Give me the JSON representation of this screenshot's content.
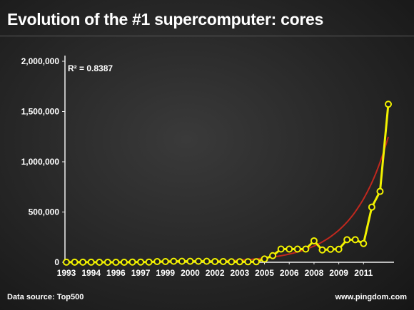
{
  "header": {
    "title": "Evolution of the #1 supercomputer: cores"
  },
  "footer": {
    "source": "Data source: Top500",
    "site": "www.pingdom.com"
  },
  "colors": {
    "data_line": "#f2f200",
    "trend_line": "#c0281e",
    "axis": "#f0f0f0"
  },
  "chart_data": {
    "type": "line",
    "title": "Evolution of the #1 supercomputer: cores",
    "xlabel": "",
    "ylabel": "",
    "ylim": [
      0,
      2000000
    ],
    "y_ticks": [
      0,
      500000,
      1000000,
      1500000,
      2000000
    ],
    "y_tick_labels": [
      "0",
      "500,000",
      "1,000,000",
      "1,500,000",
      "2,000,000"
    ],
    "x_tick_labels": [
      "1993",
      "1994",
      "1996",
      "1997",
      "1999",
      "2000",
      "2002",
      "2003",
      "2005",
      "2006",
      "2008",
      "2009",
      "2011"
    ],
    "annotation": "R² = 0.8387",
    "grid": false,
    "legend": "none",
    "series": [
      {
        "values": [
          1024,
          1024,
          1024,
          1024,
          140,
          140,
          140,
          140,
          2048,
          2048,
          2048,
          7264,
          7264,
          9632,
          9632,
          9632,
          9632,
          9632,
          7424,
          7424,
          5120,
          5120,
          5120,
          5120,
          32768,
          65536,
          131072,
          131072,
          131072,
          131072,
          212992,
          122400,
          129600,
          129600,
          224162,
          224162,
          186368,
          548352,
          705024,
          1572864
        ]
      }
    ],
    "trendline": {
      "type": "exponential",
      "r_squared": 0.8387,
      "start_value": 175,
      "growth_rate": 0.2275
    }
  }
}
